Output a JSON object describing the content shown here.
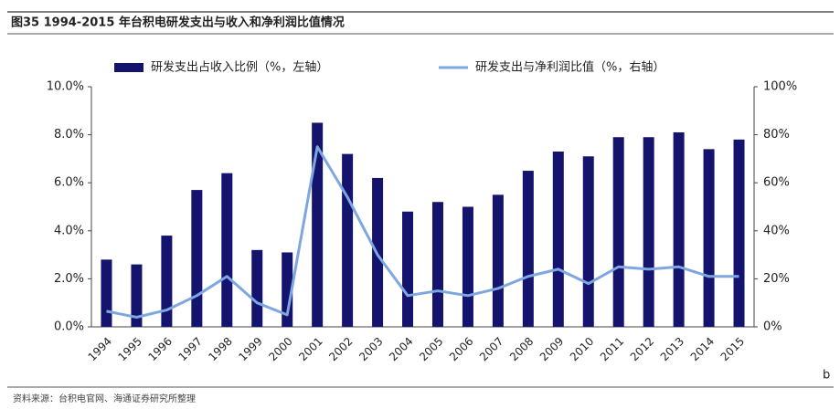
{
  "chart_data": {
    "type": "combo",
    "title": "图35 1994-2015 年台积电研发支出与收入和净利润比值情况",
    "source": "资料来源：台积电官网、海通证券研究所整理",
    "annotation": "b",
    "categories": [
      "1994",
      "1995",
      "1996",
      "1997",
      "1998",
      "1999",
      "2000",
      "2001",
      "2002",
      "2003",
      "2004",
      "2005",
      "2006",
      "2007",
      "2008",
      "2009",
      "2010",
      "2011",
      "2012",
      "2013",
      "2014",
      "2015"
    ],
    "series": [
      {
        "name": "研发支出占收入比例（%，左轴）",
        "type": "bar",
        "color": "#14146e",
        "values": [
          2.8,
          2.6,
          3.8,
          5.7,
          6.4,
          3.2,
          3.1,
          8.5,
          7.2,
          6.2,
          4.8,
          5.2,
          5.0,
          5.5,
          6.5,
          7.3,
          7.1,
          7.9,
          7.9,
          8.1,
          7.4,
          7.8
        ]
      },
      {
        "name": "研发支出与净利润比值（%，右轴）",
        "type": "line",
        "axis": "y2",
        "color": "#7ea6e0",
        "values": [
          6.5,
          4,
          7,
          13,
          21,
          10,
          5,
          75,
          54,
          30,
          13,
          15,
          13,
          16,
          21,
          24,
          18,
          25,
          24,
          25,
          21,
          21
        ]
      }
    ],
    "ylim": [
      0,
      10
    ],
    "yticks": [
      {
        "value": 0,
        "label": "0.0%"
      },
      {
        "value": 2,
        "label": "2.0%"
      },
      {
        "value": 4,
        "label": "4.0%"
      },
      {
        "value": 6,
        "label": "6.0%"
      },
      {
        "value": 8,
        "label": "8.0%"
      },
      {
        "value": 10,
        "label": "10.0%"
      }
    ],
    "y2lim": [
      0,
      100
    ],
    "y2ticks": [
      {
        "value": 0,
        "label": "0%"
      },
      {
        "value": 20,
        "label": "20%"
      },
      {
        "value": 40,
        "label": "40%"
      },
      {
        "value": 60,
        "label": "60%"
      },
      {
        "value": 80,
        "label": "80%"
      },
      {
        "value": 100,
        "label": "100%"
      }
    ],
    "grid": false
  }
}
